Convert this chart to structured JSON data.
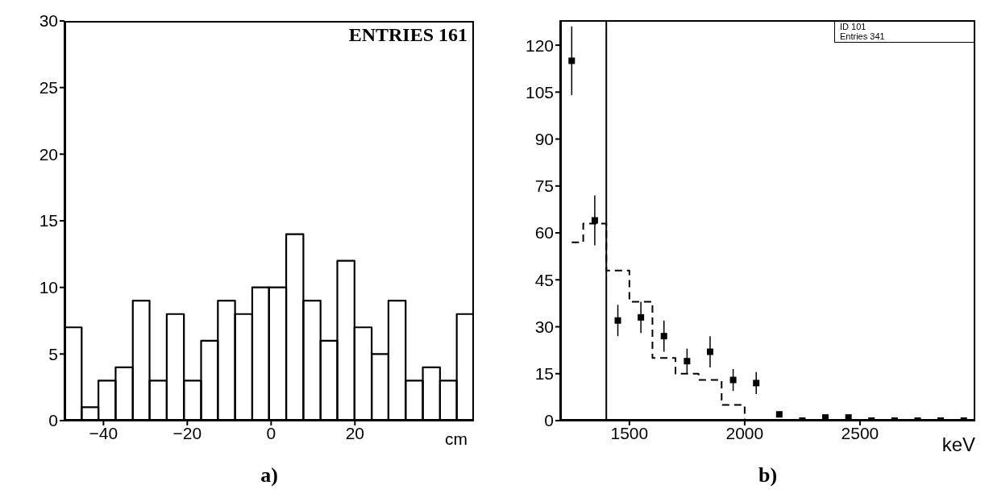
{
  "chart_data": [
    {
      "type": "histogram",
      "bins": [
        -49.3,
        -45.2,
        -41.2,
        -37.1,
        -33.0,
        -29.0,
        -24.9,
        -20.8,
        -16.7,
        -12.7,
        -8.6,
        -4.5,
        -0.5,
        3.6,
        7.7,
        11.8,
        15.8,
        19.9,
        24.0,
        28.0,
        32.1,
        36.2,
        40.3,
        44.3,
        48.4
      ],
      "values": [
        7,
        1,
        3,
        4,
        9,
        3,
        8,
        3,
        6,
        9,
        8,
        10,
        10,
        14,
        9,
        6,
        12,
        7,
        5,
        9,
        3,
        4,
        3,
        8
      ],
      "color": "#000000",
      "xlim": [
        -49.3,
        48.4
      ],
      "xticks": [
        -40,
        -20,
        0,
        20
      ],
      "ylim": [
        0,
        30
      ],
      "yticks": [
        0,
        5,
        10,
        15,
        20,
        25,
        30
      ],
      "xlabel": "cm",
      "annotations": [
        "ENTRIES 161",
        "a)"
      ]
    },
    {
      "type": "scatter",
      "x": [
        1250,
        1350,
        1450,
        1550,
        1650,
        1750,
        1850,
        1950,
        2050,
        2150,
        2250,
        2350,
        2450,
        2550,
        2650,
        2750,
        2850,
        2950
      ],
      "series": [
        {
          "type": "scatter",
          "color": "#000000",
          "marker": "square",
          "values": [
            115,
            64,
            32,
            33,
            27,
            19,
            22,
            13,
            12,
            2,
            0,
            1,
            1,
            0,
            0,
            0,
            0,
            0
          ],
          "errors": [
            11,
            8,
            5,
            5,
            5,
            4,
            5,
            3.5,
            3.5,
            null,
            null,
            null,
            null,
            null,
            null,
            null,
            null,
            null
          ]
        },
        {
          "type": "step",
          "color": "#000000",
          "line_style": "dashed",
          "values": [
            57,
            63,
            48,
            38,
            20,
            15,
            13,
            5,
            0,
            0,
            0,
            0,
            0,
            0,
            0,
            0,
            0,
            0
          ]
        }
      ],
      "xlim": [
        1200,
        3000
      ],
      "xticks": [
        1500,
        2000,
        2500
      ],
      "ylim": [
        0,
        128
      ],
      "yticks": [
        0,
        15,
        30,
        45,
        60,
        75,
        90,
        105,
        120
      ],
      "xlabel": "keV",
      "ref_lines": [
        {
          "axis": "x",
          "value": 1400,
          "color": "#000000"
        }
      ],
      "annotations": [
        "ID 101",
        "Entries 341",
        "b)"
      ]
    }
  ]
}
